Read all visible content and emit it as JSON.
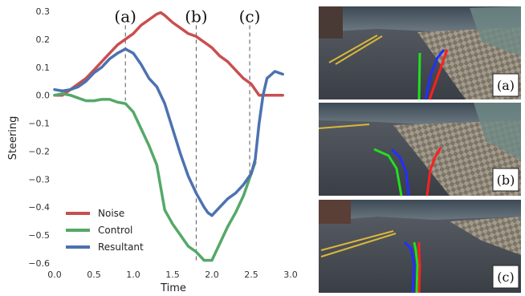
{
  "chart_data": {
    "type": "line",
    "xlabel": "Time",
    "ylabel": "Steering",
    "xlim": [
      0.0,
      3.0
    ],
    "ylim": [
      -0.6,
      0.3
    ],
    "x_ticks": [
      "0.0",
      "0.5",
      "1.0",
      "1.5",
      "2.0",
      "2.5",
      "3.0"
    ],
    "y_ticks": [
      "0.3",
      "0.2",
      "0.1",
      "0.0",
      "−0.1",
      "−0.2",
      "−0.3",
      "−0.4",
      "−0.5",
      "−0.6"
    ],
    "grid": false,
    "legend_position": "bottom-left",
    "series": [
      {
        "name": "Noise",
        "color": "#c94f4f",
        "x": [
          0.0,
          0.1,
          0.2,
          0.3,
          0.4,
          0.5,
          0.6,
          0.7,
          0.8,
          0.9,
          1.0,
          1.1,
          1.2,
          1.3,
          1.35,
          1.4,
          1.5,
          1.6,
          1.7,
          1.8,
          1.9,
          2.0,
          2.1,
          2.2,
          2.3,
          2.4,
          2.5,
          2.6,
          2.7,
          2.8,
          2.9
        ],
        "y": [
          0.0,
          0.0,
          0.02,
          0.04,
          0.06,
          0.09,
          0.12,
          0.15,
          0.18,
          0.2,
          0.22,
          0.25,
          0.27,
          0.29,
          0.295,
          0.285,
          0.26,
          0.24,
          0.22,
          0.21,
          0.19,
          0.17,
          0.14,
          0.12,
          0.09,
          0.06,
          0.04,
          0.0,
          0.0,
          0.0,
          0.0
        ]
      },
      {
        "name": "Control",
        "color": "#55a868",
        "x": [
          0.0,
          0.1,
          0.2,
          0.3,
          0.4,
          0.5,
          0.6,
          0.7,
          0.8,
          0.9,
          1.0,
          1.1,
          1.2,
          1.3,
          1.4,
          1.5,
          1.6,
          1.7,
          1.8,
          1.9,
          2.0,
          2.1,
          2.2,
          2.3,
          2.4,
          2.5,
          2.55
        ],
        "y": [
          0.0,
          0.005,
          0.0,
          -0.01,
          -0.02,
          -0.02,
          -0.015,
          -0.015,
          -0.025,
          -0.03,
          -0.06,
          -0.12,
          -0.18,
          -0.25,
          -0.41,
          -0.46,
          -0.5,
          -0.54,
          -0.56,
          -0.59,
          -0.59,
          -0.53,
          -0.47,
          -0.42,
          -0.36,
          -0.28,
          -0.24
        ]
      },
      {
        "name": "Resultant",
        "color": "#4c72b0",
        "x": [
          0.0,
          0.1,
          0.2,
          0.3,
          0.4,
          0.5,
          0.6,
          0.7,
          0.8,
          0.9,
          1.0,
          1.1,
          1.2,
          1.3,
          1.4,
          1.5,
          1.6,
          1.7,
          1.8,
          1.9,
          1.95,
          2.0,
          2.1,
          2.2,
          2.3,
          2.4,
          2.5,
          2.55,
          2.6,
          2.65,
          2.7,
          2.8,
          2.9
        ],
        "y": [
          0.02,
          0.015,
          0.02,
          0.03,
          0.05,
          0.08,
          0.1,
          0.13,
          0.15,
          0.165,
          0.15,
          0.11,
          0.06,
          0.03,
          -0.03,
          -0.12,
          -0.21,
          -0.29,
          -0.35,
          -0.4,
          -0.42,
          -0.43,
          -0.4,
          -0.37,
          -0.35,
          -0.32,
          -0.28,
          -0.23,
          -0.1,
          0.0,
          0.06,
          0.085,
          0.075
        ]
      }
    ],
    "markers": [
      {
        "label": "(a)",
        "x": 0.9
      },
      {
        "label": "(b)",
        "x": 1.8
      },
      {
        "label": "(c)",
        "x": 2.48
      }
    ]
  },
  "images": {
    "panels": [
      {
        "label": "(a)"
      },
      {
        "label": "(b)"
      },
      {
        "label": "(c)"
      }
    ]
  }
}
